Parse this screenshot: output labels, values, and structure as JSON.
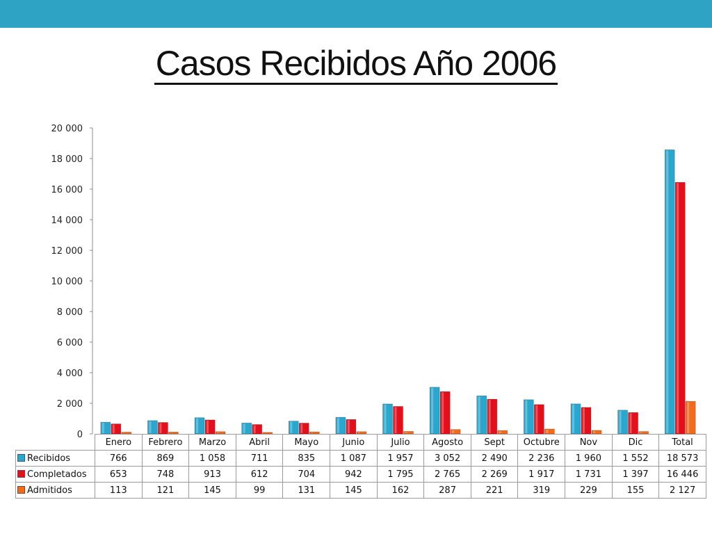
{
  "title": "Casos Recibidos Año 2006",
  "chart_data": {
    "type": "bar",
    "title": "",
    "xlabel": "",
    "ylabel": "",
    "ylim": [
      0,
      20000
    ],
    "yticks": [
      0,
      2000,
      4000,
      6000,
      8000,
      10000,
      12000,
      14000,
      16000,
      18000,
      20000
    ],
    "ytick_labels": [
      "0",
      "2 000",
      "4 000",
      "6 000",
      "8 000",
      "10 000",
      "12 000",
      "14 000",
      "16 000",
      "18 000",
      "20 000"
    ],
    "legend_position": "data-table-below",
    "categories": [
      "Enero",
      "Febrero",
      "Marzo",
      "Abril",
      "Mayo",
      "Junio",
      "Julio",
      "Agosto",
      "Sept",
      "Octubre",
      "Nov",
      "Dic",
      "Total"
    ],
    "series": [
      {
        "name": "Recibidos",
        "color": "#2aa7cf",
        "values": [
          766,
          869,
          1058,
          711,
          835,
          1087,
          1957,
          3052,
          2490,
          2236,
          1960,
          1552,
          18573
        ],
        "labels": [
          "766",
          "869",
          "1 058",
          "711",
          "835",
          "1 087",
          "1 957",
          "3 052",
          "2 490",
          "2 236",
          "1 960",
          "1 552",
          "18 573"
        ]
      },
      {
        "name": "Completados",
        "color": "#e3101c",
        "values": [
          653,
          748,
          913,
          612,
          704,
          942,
          1795,
          2765,
          2269,
          1917,
          1731,
          1397,
          16446
        ],
        "labels": [
          "653",
          "748",
          "913",
          "612",
          "704",
          "942",
          "1 795",
          "2 765",
          "2 269",
          "1 917",
          "1 731",
          "1 397",
          "16 446"
        ]
      },
      {
        "name": "Admitidos",
        "color": "#f26a1b",
        "values": [
          113,
          121,
          145,
          99,
          131,
          145,
          162,
          287,
          221,
          319,
          229,
          155,
          2127
        ],
        "labels": [
          "113",
          "121",
          "145",
          "99",
          "131",
          "145",
          "162",
          "287",
          "221",
          "319",
          "229",
          "155",
          "2 127"
        ]
      }
    ]
  }
}
